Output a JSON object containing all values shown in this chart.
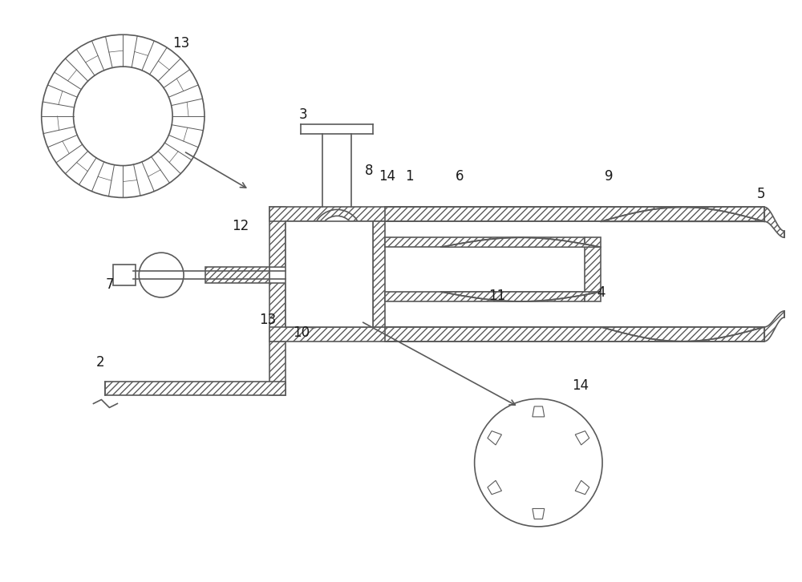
{
  "bg_color": "#ffffff",
  "lc": "#5a5a5a",
  "lw": 1.2,
  "lw_thin": 0.7,
  "label_fs": 11,
  "label_color": "#1a1a1a"
}
